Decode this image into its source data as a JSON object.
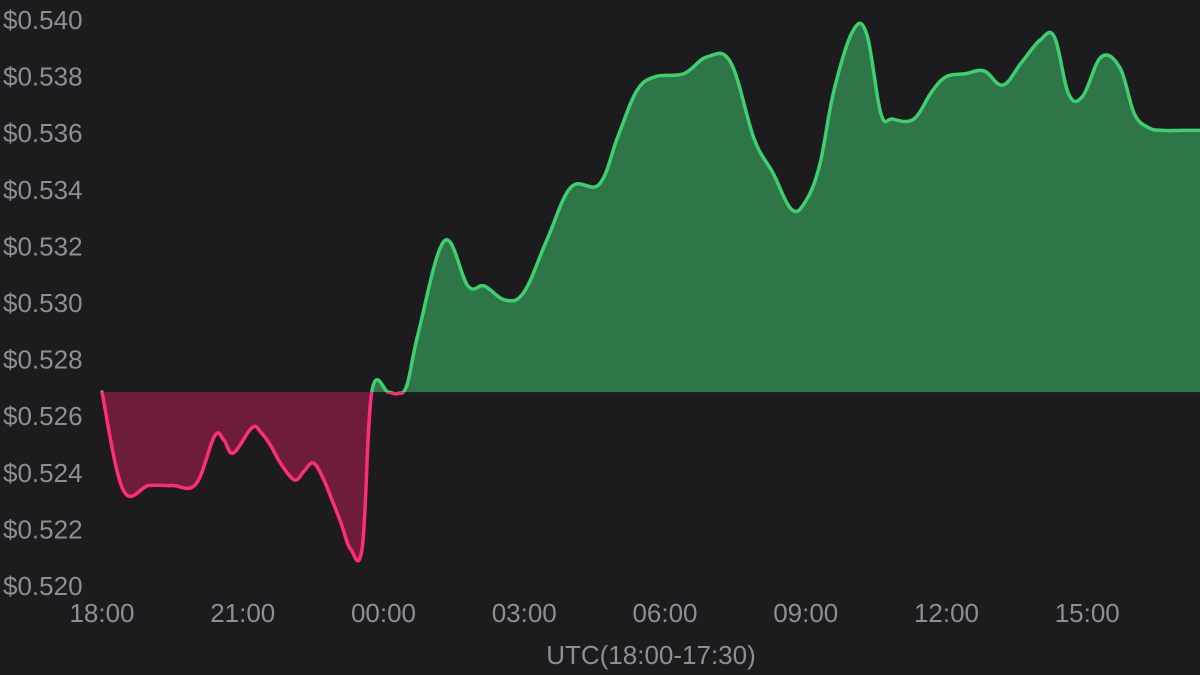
{
  "chart_data": {
    "type": "area",
    "xlabel": "UTC(18:00-17:30)",
    "ylabel": "",
    "x_ticks": [
      "18:00",
      "21:00",
      "00:00",
      "03:00",
      "06:00",
      "09:00",
      "12:00",
      "15:00"
    ],
    "y_ticks": [
      "$0.520",
      "$0.522",
      "$0.524",
      "$0.526",
      "$0.528",
      "$0.530",
      "$0.532",
      "$0.534",
      "$0.536",
      "$0.538",
      "$0.540"
    ],
    "ylim": [
      0.52,
      0.54
    ],
    "x_range_hours": [
      0,
      23.5
    ],
    "baseline": 0.52685,
    "grid": false,
    "colors": {
      "above_line": "#3ecf6e",
      "above_fill": "#2e7548",
      "below_line": "#ff2d78",
      "below_fill": "#6e1c3c",
      "tick_text": "#8e8e93",
      "background": "#1c1c1e"
    },
    "series": [
      {
        "x": [
          0,
          0.45,
          1.0,
          1.5,
          2.0,
          2.4,
          2.6,
          2.8,
          3.2,
          3.4,
          3.6,
          3.8,
          4.1,
          4.3,
          4.5,
          4.7,
          4.9,
          5.1,
          5.3,
          5.55,
          5.75,
          6.1,
          6.3,
          6.5,
          6.75,
          7.3,
          7.8,
          8.15,
          8.6,
          9.0,
          9.5,
          10.0,
          10.6,
          11.0,
          11.4,
          11.8,
          12.4,
          12.9,
          13.4,
          13.9,
          14.3,
          14.7,
          15.0,
          15.3,
          15.6,
          16.0,
          16.3,
          16.6,
          16.85,
          17.3,
          17.7,
          18.0,
          18.4,
          18.8,
          19.2,
          19.6,
          20.0,
          20.3,
          20.6,
          20.9,
          21.3,
          21.7,
          22.0,
          22.3,
          22.6,
          23.0,
          23.5
        ],
        "y": [
          0.52685,
          0.5234,
          0.52355,
          0.52355,
          0.5236,
          0.5253,
          0.52515,
          0.5247,
          0.5256,
          0.5254,
          0.52495,
          0.52435,
          0.52375,
          0.52405,
          0.52435,
          0.52385,
          0.52305,
          0.5222,
          0.5213,
          0.5214,
          0.52685,
          0.52685,
          0.5268,
          0.5271,
          0.529,
          0.5322,
          0.5306,
          0.5306,
          0.5301,
          0.5304,
          0.5323,
          0.5341,
          0.5342,
          0.5359,
          0.5375,
          0.538,
          0.5381,
          0.5387,
          0.5385,
          0.5358,
          0.5346,
          0.5333,
          0.5336,
          0.5349,
          0.5375,
          0.5396,
          0.5395,
          0.5367,
          0.5365,
          0.5365,
          0.5375,
          0.538,
          0.5381,
          0.5382,
          0.5377,
          0.5385,
          0.5393,
          0.5394,
          0.5374,
          0.5373,
          0.5387,
          0.5383,
          0.5367,
          0.5362,
          0.5361,
          0.5361,
          0.5361
        ]
      }
    ]
  }
}
